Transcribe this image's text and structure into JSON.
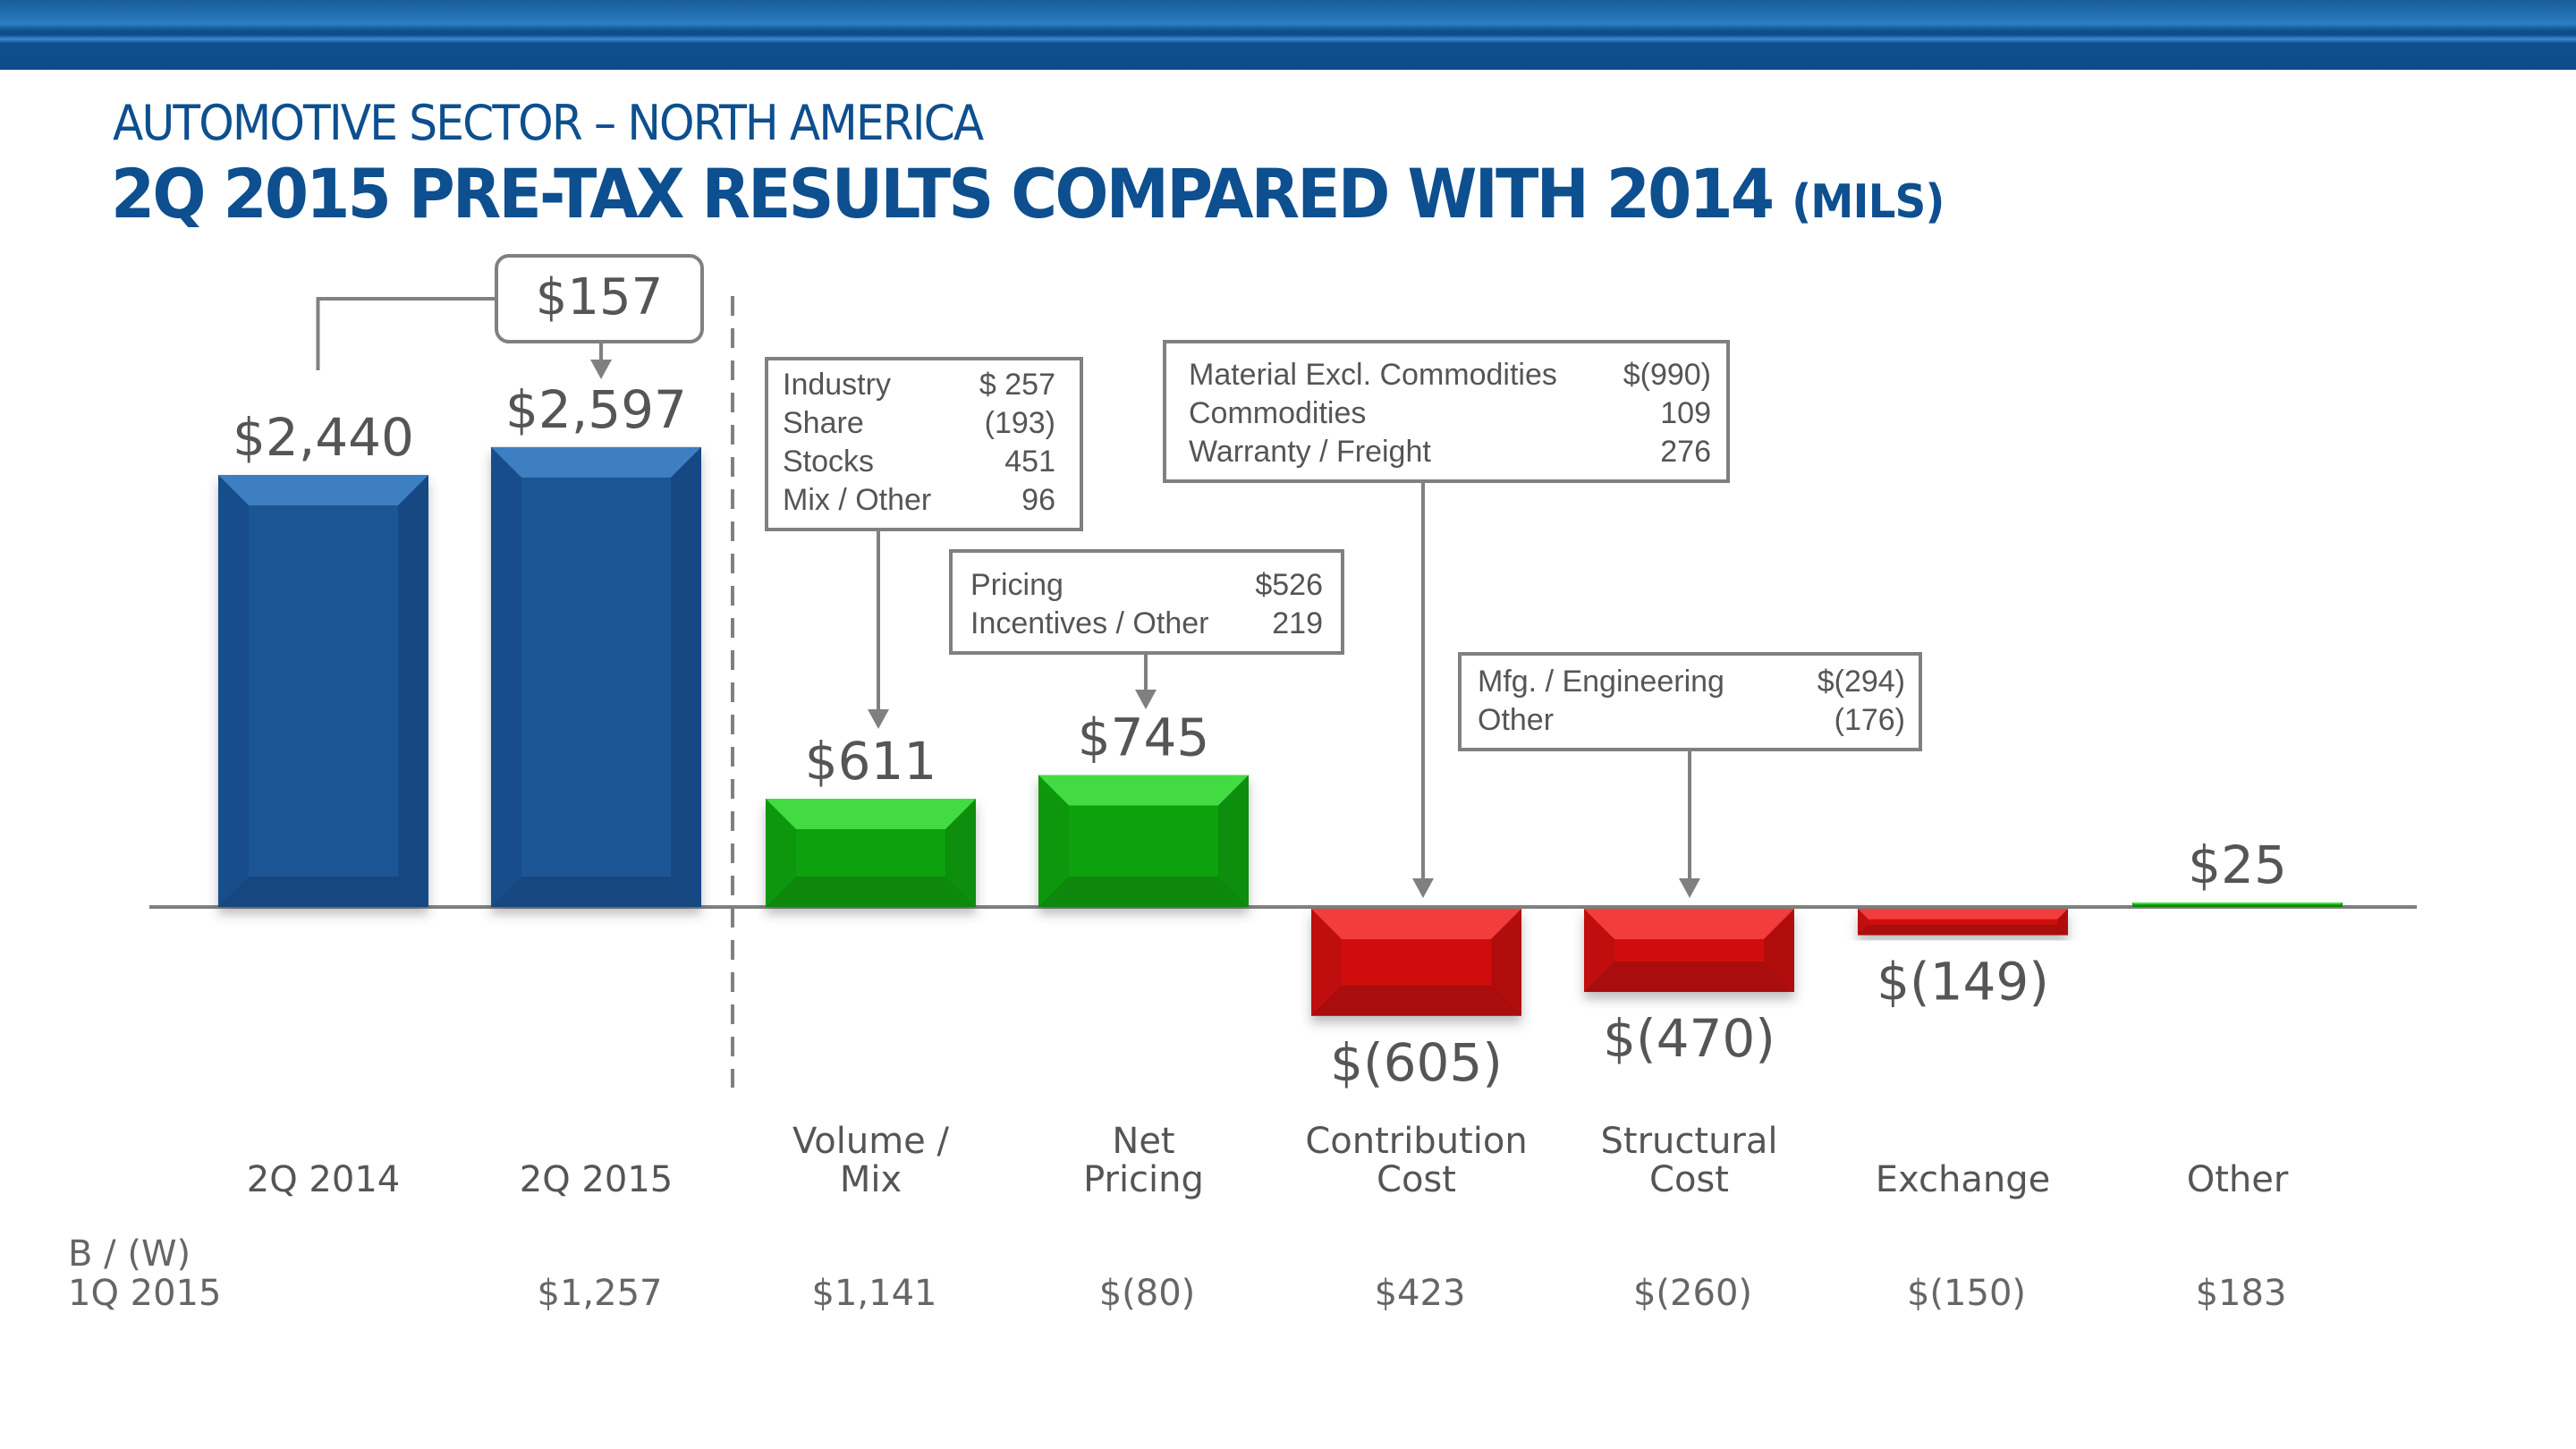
{
  "header": {
    "subtitle": "AUTOMOTIVE SECTOR – NORTH AMERICA",
    "title": "2Q 2015 PRE-TAX RESULTS COMPARED WITH 2014",
    "units": "(MILS)"
  },
  "colors": {
    "brand_blue": "#0d4f8f",
    "total_bar": "#1a5493",
    "positive_bar": "#0aa10a",
    "negative_bar": "#d00a0a",
    "text_gray": "#555555",
    "connector_gray": "#808080"
  },
  "chart_data": {
    "type": "bar",
    "subtype": "waterfall",
    "title": "2Q 2015 PRE-TAX RESULTS COMPARED WITH 2014 (MILS)",
    "xlabel": "",
    "ylabel": "",
    "grid": false,
    "legend": "none",
    "categories": [
      "2Q 2014",
      "2Q 2015",
      "Volume / Mix",
      "Net Pricing",
      "Contribution Cost",
      "Structural Cost",
      "Exchange",
      "Other"
    ],
    "category_lines": [
      [
        "2Q 2014"
      ],
      [
        "2Q 2015"
      ],
      [
        "Volume /",
        "Mix"
      ],
      [
        "Net",
        "Pricing"
      ],
      [
        "Contribution",
        "Cost"
      ],
      [
        "Structural",
        "Cost"
      ],
      [
        "Exchange"
      ],
      [
        "Other"
      ]
    ],
    "values": [
      2440,
      2597,
      611,
      745,
      -605,
      -470,
      -149,
      25
    ],
    "value_labels": [
      "$2,440",
      "$2,597",
      "$611",
      "$745",
      "$(605)",
      "$(470)",
      "$(149)",
      "$25"
    ],
    "bar_kinds": [
      "total",
      "total",
      "positive",
      "positive",
      "negative",
      "negative",
      "negative",
      "positive"
    ],
    "ylim": [
      -700,
      2900
    ],
    "delta": {
      "value": 157,
      "label": "$157",
      "from": "2Q 2014",
      "to": "2Q 2015"
    },
    "detail_boxes": [
      {
        "category": "Volume / Mix",
        "rows": [
          {
            "label": "Industry",
            "value": "$ 257"
          },
          {
            "label": "Share",
            "value": "(193)"
          },
          {
            "label": "Stocks",
            "value": "451"
          },
          {
            "label": "Mix / Other",
            "value": "96"
          }
        ]
      },
      {
        "category": "Net Pricing",
        "rows": [
          {
            "label": "Pricing",
            "value": "$526"
          },
          {
            "label": "Incentives / Other",
            "value": "219"
          }
        ]
      },
      {
        "category": "Contribution Cost",
        "rows": [
          {
            "label": "Material Excl. Commodities",
            "value": "$(990)"
          },
          {
            "label": "Commodities",
            "value": "109"
          },
          {
            "label": "Warranty / Freight",
            "value": "276"
          }
        ]
      },
      {
        "category": "Structural Cost",
        "rows": [
          {
            "label": "Mfg. / Engineering",
            "value": "$(294)"
          },
          {
            "label": "Other",
            "value": "(176)"
          }
        ]
      }
    ],
    "comparison_row": {
      "header_lines": [
        "B / (W)",
        "1Q 2015"
      ],
      "values": [
        "",
        "$1,257",
        "$1,141",
        "$(80)",
        "$423",
        "$(260)",
        "$(150)",
        "$183"
      ]
    }
  }
}
